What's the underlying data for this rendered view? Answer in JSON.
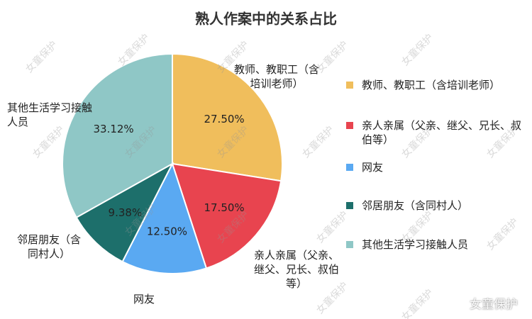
{
  "chart_data": {
    "type": "pie",
    "title": "熟人作案中的关系占比",
    "categories": [
      "教师、教职工（含培训老师）",
      "亲人亲属（父亲、继父、兄长、叔伯等）",
      "网友",
      "邻居朋友（含同村人）",
      "其他生活学习接触人员"
    ],
    "values": [
      27.5,
      17.5,
      12.5,
      9.38,
      33.12
    ],
    "value_labels": [
      "27.50%",
      "17.50%",
      "12.50%",
      "9.38%",
      "33.12%"
    ],
    "colors": [
      "#f0be5c",
      "#e8444f",
      "#5aa9f2",
      "#1d6f6b",
      "#8fc7c6"
    ],
    "legend": "right",
    "watermark": "女童保护"
  }
}
